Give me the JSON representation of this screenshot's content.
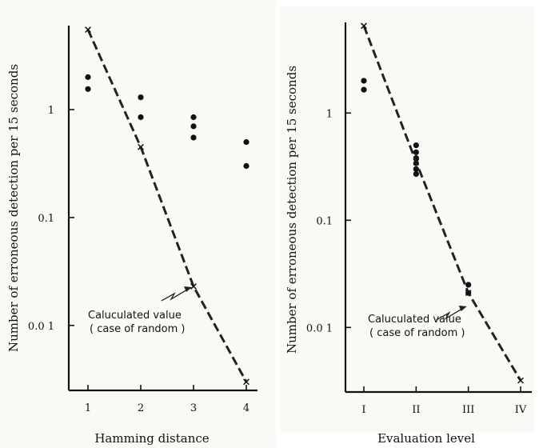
{
  "chart_data": [
    {
      "type": "scatter",
      "title": "",
      "xlabel": "Hamming distance",
      "ylabel": "Number of erroneous detection per 15 seconds",
      "y_scale": "log",
      "ylim": [
        0.0025,
        6
      ],
      "y_ticks": [
        {
          "value": 1,
          "label": "1"
        },
        {
          "value": 0.1,
          "label": "0.1"
        },
        {
          "value": 0.01,
          "label": "0.0 1"
        }
      ],
      "categories": [
        "1",
        "2",
        "3",
        "4"
      ],
      "series": [
        {
          "marker": "dot",
          "color": "#111111",
          "points": [
            {
              "x": 1,
              "y": 2.0
            },
            {
              "x": 1,
              "y": 1.55
            },
            {
              "x": 2,
              "y": 1.3
            },
            {
              "x": 2,
              "y": 0.85
            },
            {
              "x": 3,
              "y": 0.85
            },
            {
              "x": 3,
              "y": 0.7
            },
            {
              "x": 3,
              "y": 0.55
            },
            {
              "x": 4,
              "y": 0.5
            },
            {
              "x": 4,
              "y": 0.3
            }
          ]
        },
        {
          "marker": "x",
          "line": "dashed",
          "color": "#222222",
          "points": [
            {
              "x": 1,
              "y": 5.5
            },
            {
              "x": 2,
              "y": 0.45
            },
            {
              "x": 3,
              "y": 0.023
            },
            {
              "x": 4,
              "y": 0.003
            }
          ]
        }
      ],
      "annotation": {
        "lines": [
          "Caluculated value",
          "( case of random )"
        ],
        "points_to": {
          "x": 3,
          "y": 0.023
        }
      }
    },
    {
      "type": "scatter",
      "title": "",
      "xlabel": "Evaluation level",
      "ylabel": "Number of erroneous detection per 15 seconds",
      "y_scale": "log",
      "ylim": [
        0.0025,
        7
      ],
      "y_ticks": [
        {
          "value": 1,
          "label": "1"
        },
        {
          "value": 0.1,
          "label": "0.1"
        },
        {
          "value": 0.01,
          "label": "0.0 1"
        }
      ],
      "categories": [
        "I",
        "II",
        "III",
        "IV"
      ],
      "series": [
        {
          "marker": "dot",
          "color": "#111111",
          "points": [
            {
              "x": 1,
              "y": 2.0
            },
            {
              "x": 1,
              "y": 1.65
            },
            {
              "x": 2,
              "y": 0.5
            },
            {
              "x": 2,
              "y": 0.43
            },
            {
              "x": 2,
              "y": 0.38
            },
            {
              "x": 2,
              "y": 0.34
            },
            {
              "x": 2,
              "y": 0.3
            },
            {
              "x": 2,
              "y": 0.27
            },
            {
              "x": 3,
              "y": 0.025
            },
            {
              "x": 3,
              "y": 0.021
            }
          ]
        },
        {
          "marker": "x",
          "line": "dashed",
          "color": "#222222",
          "points": [
            {
              "x": 1,
              "y": 6.5
            },
            {
              "x": 2,
              "y": 0.35
            },
            {
              "x": 3,
              "y": 0.021
            },
            {
              "x": 4,
              "y": 0.0032
            }
          ]
        }
      ],
      "annotation": {
        "lines": [
          "Caluculated value",
          "( case of random )"
        ],
        "points_to": {
          "x": 3,
          "y": 0.016
        }
      }
    }
  ]
}
